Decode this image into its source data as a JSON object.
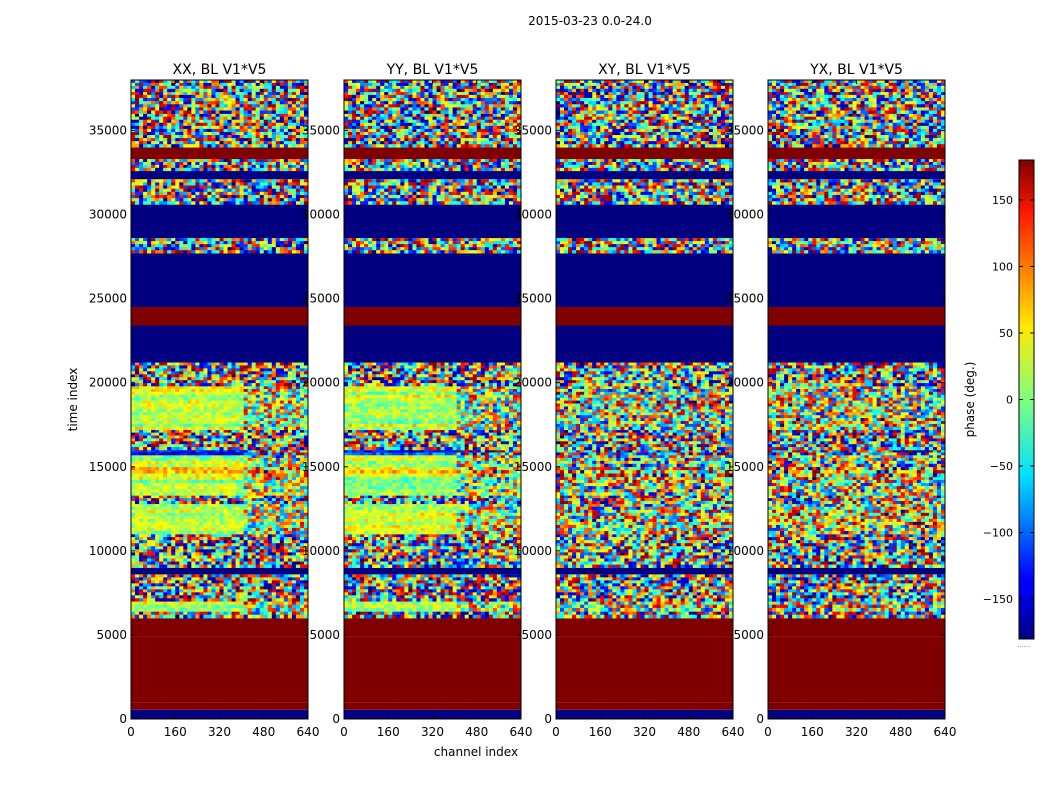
{
  "suptitle": "2015-03-23 0.0-24.0",
  "chart_data": {
    "type": "heatmap",
    "xlabel": "channel index",
    "ylabel": "time index",
    "xlim": [
      0,
      640
    ],
    "ylim": [
      0,
      38000
    ],
    "x_ticks": [
      0,
      160,
      320,
      480,
      640
    ],
    "y_ticks": [
      0,
      5000,
      10000,
      15000,
      20000,
      25000,
      30000,
      35000
    ],
    "colormap": "jet",
    "colorbar": {
      "label": "phase (deg.)",
      "range": [
        -180,
        180
      ],
      "ticks": [
        -150,
        -100,
        -50,
        0,
        50,
        100,
        150
      ],
      "tick_labels": [
        "−150",
        "−100",
        "−50",
        "0",
        "50",
        "100",
        "150"
      ],
      "footnote": "......"
    },
    "panels": [
      {
        "title": "XX, BL V1*V5",
        "polarization": "XX"
      },
      {
        "title": "YY, BL V1*V5",
        "polarization": "YY"
      },
      {
        "title": "XY, BL V1*V5",
        "polarization": "XY"
      },
      {
        "title": "YX, BL V1*V5",
        "polarization": "YX"
      }
    ],
    "bands": [
      {
        "t0": 0,
        "t1": 550,
        "phase": -180,
        "kind": "solid"
      },
      {
        "t0": 550,
        "t1": 1000,
        "phase": 180,
        "kind": "solid"
      },
      {
        "t0": 1000,
        "t1": 4900,
        "phase": 180,
        "kind": "solid"
      },
      {
        "t0": 4900,
        "t1": 6000,
        "phase": 180,
        "kind": "solid"
      },
      {
        "t0": 6000,
        "t1": 6400,
        "phase": 0,
        "kind": "noise"
      },
      {
        "t0": 6400,
        "t1": 7000,
        "phase": 20,
        "kind": "smooth"
      },
      {
        "t0": 7000,
        "t1": 8600,
        "phase": 0,
        "kind": "noise"
      },
      {
        "t0": 8600,
        "t1": 9000,
        "phase": -180,
        "kind": "solid"
      },
      {
        "t0": 9000,
        "t1": 11000,
        "phase": 0,
        "kind": "noise"
      },
      {
        "t0": 11000,
        "t1": 12800,
        "phase": 25,
        "kind": "smooth"
      },
      {
        "t0": 12800,
        "t1": 13300,
        "phase": 0,
        "kind": "noise"
      },
      {
        "t0": 13300,
        "t1": 14400,
        "phase": 15,
        "kind": "smooth"
      },
      {
        "t0": 14400,
        "t1": 15000,
        "phase": 60,
        "kind": "smooth"
      },
      {
        "t0": 15000,
        "t1": 15700,
        "phase": 10,
        "kind": "smooth"
      },
      {
        "t0": 15700,
        "t1": 16000,
        "phase": -120,
        "kind": "smooth"
      },
      {
        "t0": 16000,
        "t1": 17200,
        "phase": 0,
        "kind": "noise"
      },
      {
        "t0": 17200,
        "t1": 19800,
        "phase": 20,
        "kind": "smooth"
      },
      {
        "t0": 19800,
        "t1": 21200,
        "phase": 0,
        "kind": "noise"
      },
      {
        "t0": 21200,
        "t1": 23400,
        "phase": -180,
        "kind": "solid"
      },
      {
        "t0": 23400,
        "t1": 24500,
        "phase": 180,
        "kind": "solid"
      },
      {
        "t0": 24500,
        "t1": 27700,
        "phase": -180,
        "kind": "solid"
      },
      {
        "t0": 27700,
        "t1": 28600,
        "phase": 0,
        "kind": "noise"
      },
      {
        "t0": 28600,
        "t1": 30600,
        "phase": -180,
        "kind": "solid"
      },
      {
        "t0": 30600,
        "t1": 32100,
        "phase": 0,
        "kind": "noise"
      },
      {
        "t0": 32100,
        "t1": 32600,
        "phase": -180,
        "kind": "solid"
      },
      {
        "t0": 32600,
        "t1": 33300,
        "phase": 0,
        "kind": "noise"
      },
      {
        "t0": 33300,
        "t1": 34000,
        "phase": 180,
        "kind": "solid"
      },
      {
        "t0": 34000,
        "t1": 36000,
        "phase": 0,
        "kind": "noise"
      },
      {
        "t0": 36000,
        "t1": 37300,
        "phase": 0,
        "kind": "noise"
      },
      {
        "t0": 37300,
        "t1": 38000,
        "phase": 0,
        "kind": "noise"
      }
    ]
  }
}
